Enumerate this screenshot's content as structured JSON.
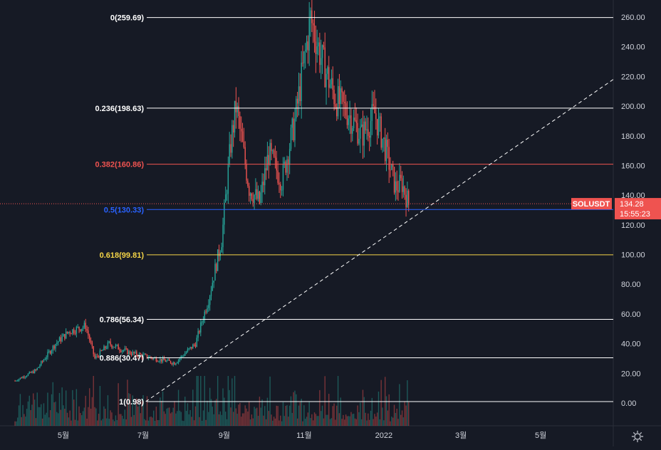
{
  "chart_data": {
    "type": "candlestick",
    "symbol": "SOLUSDT",
    "last_price": "134.28",
    "countdown": "15:55:23",
    "ylim": [
      -8,
      268
    ],
    "y_ticks": [
      {
        "value": 0,
        "label": "0.00"
      },
      {
        "value": 20,
        "label": "20.00"
      },
      {
        "value": 40,
        "label": "40.00"
      },
      {
        "value": 60,
        "label": "60.00"
      },
      {
        "value": 80,
        "label": "80.00"
      },
      {
        "value": 100,
        "label": "100.00"
      },
      {
        "value": 120,
        "label": "120.00"
      },
      {
        "value": 140,
        "label": "140.00"
      },
      {
        "value": 160,
        "label": "160.00"
      },
      {
        "value": 180,
        "label": "180.00"
      },
      {
        "value": 200,
        "label": "200.00"
      },
      {
        "value": 220,
        "label": "220.00"
      },
      {
        "value": 240,
        "label": "240.00"
      },
      {
        "value": 260,
        "label": "260.00"
      }
    ],
    "x_ticks": [
      {
        "date": "2021-05-01",
        "label": "5월"
      },
      {
        "date": "2021-07-01",
        "label": "7월"
      },
      {
        "date": "2021-09-01",
        "label": "9월"
      },
      {
        "date": "2021-11-01",
        "label": "11월"
      },
      {
        "date": "2022-01-01",
        "label": "2022"
      },
      {
        "date": "2022-03-01",
        "label": "3월"
      },
      {
        "date": "2022-05-01",
        "label": "5월"
      }
    ],
    "fib_levels": [
      {
        "ratio": "0",
        "value": 259.69,
        "label": "0(259.69)",
        "color": "#ffffff"
      },
      {
        "ratio": "0.236",
        "value": 198.63,
        "label": "0.236(198.63)",
        "color": "#ffffff"
      },
      {
        "ratio": "0.382",
        "value": 160.86,
        "label": "0.382(160.86)",
        "color": "#ef5350"
      },
      {
        "ratio": "0.5",
        "value": 130.33,
        "label": "0.5(130.33)",
        "color": "#2962ff"
      },
      {
        "ratio": "0.618",
        "value": 99.81,
        "label": "0.618(99.81)",
        "color": "#f5d547"
      },
      {
        "ratio": "0.786",
        "value": 56.34,
        "label": "0.786(56.34)",
        "color": "#ffffff"
      },
      {
        "ratio": "0.886",
        "value": 30.47,
        "label": "0.886(30.47)",
        "color": "#ffffff"
      },
      {
        "ratio": "1",
        "value": 0.98,
        "label": "1(0.98)",
        "color": "#ffffff"
      }
    ],
    "trendline": {
      "from": {
        "date": "2021-07-03",
        "price": 0.98
      },
      "to": {
        "date": "2022-06-01",
        "price": 218
      }
    },
    "series_outline": [
      {
        "date": "2021-03-25",
        "price": 15
      },
      {
        "date": "2021-04-10",
        "price": 22
      },
      {
        "date": "2021-04-25",
        "price": 40
      },
      {
        "date": "2021-05-05",
        "price": 48
      },
      {
        "date": "2021-05-18",
        "price": 52
      },
      {
        "date": "2021-05-25",
        "price": 30
      },
      {
        "date": "2021-06-05",
        "price": 40
      },
      {
        "date": "2021-06-20",
        "price": 34
      },
      {
        "date": "2021-07-10",
        "price": 30
      },
      {
        "date": "2021-07-25",
        "price": 27
      },
      {
        "date": "2021-08-10",
        "price": 40
      },
      {
        "date": "2021-08-20",
        "price": 70
      },
      {
        "date": "2021-08-30",
        "price": 110
      },
      {
        "date": "2021-09-06",
        "price": 175
      },
      {
        "date": "2021-09-10",
        "price": 200
      },
      {
        "date": "2021-09-20",
        "price": 145
      },
      {
        "date": "2021-09-28",
        "price": 135
      },
      {
        "date": "2021-10-05",
        "price": 168
      },
      {
        "date": "2021-10-15",
        "price": 150
      },
      {
        "date": "2021-10-25",
        "price": 190
      },
      {
        "date": "2021-11-06",
        "price": 259
      },
      {
        "date": "2021-11-15",
        "price": 230
      },
      {
        "date": "2021-11-25",
        "price": 205
      },
      {
        "date": "2021-12-05",
        "price": 195
      },
      {
        "date": "2021-12-15",
        "price": 180
      },
      {
        "date": "2021-12-25",
        "price": 195
      },
      {
        "date": "2022-01-01",
        "price": 175
      },
      {
        "date": "2022-01-10",
        "price": 145
      },
      {
        "date": "2022-01-15",
        "price": 148
      },
      {
        "date": "2022-01-20",
        "price": 134
      }
    ]
  },
  "settings_icon": "gear-icon"
}
